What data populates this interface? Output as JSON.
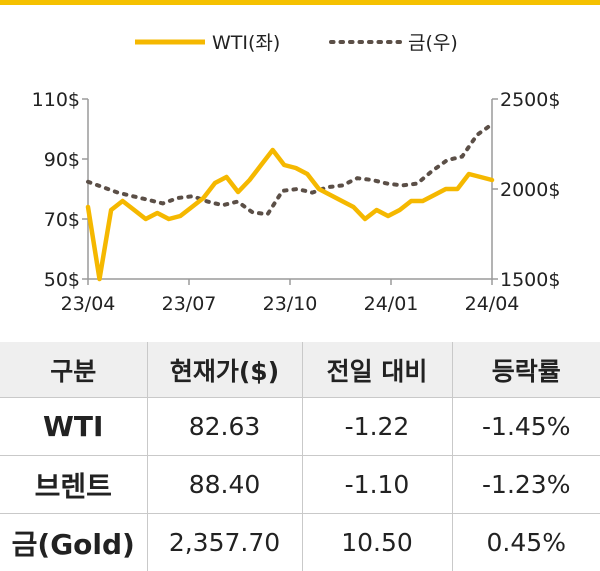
{
  "legend": {
    "wti": "WTI(좌)",
    "gold": "금(우)"
  },
  "colors": {
    "wti": "#f5b800",
    "gold": "#5b4f47",
    "axis": "#9a9a9a",
    "header_bg": "#efefef"
  },
  "chart_data": {
    "type": "line",
    "x_tick_labels": [
      "23/04",
      "23/07",
      "23/10",
      "24/01",
      "24/04"
    ],
    "y_left": {
      "ticks": [
        "110$",
        "90$",
        "70$",
        "50$"
      ],
      "range": [
        50,
        110
      ]
    },
    "y_right": {
      "ticks": [
        "2500$",
        "2000$",
        "1500$"
      ],
      "range": [
        1500,
        2500
      ]
    },
    "series": [
      {
        "name": "WTI(좌)",
        "axis": "left",
        "x": [
          "23/04",
          "23/04",
          "23/04",
          "23/04",
          "23/05",
          "23/05",
          "23/05",
          "23/06",
          "23/06",
          "23/07",
          "23/07",
          "23/07",
          "23/08",
          "23/08",
          "23/08",
          "23/09",
          "23/09",
          "23/09",
          "23/10",
          "23/10",
          "23/10",
          "23/11",
          "23/11",
          "23/11",
          "23/12",
          "23/12",
          "24/01",
          "24/01",
          "24/01",
          "24/02",
          "24/02",
          "24/03",
          "24/03",
          "24/03",
          "24/04",
          "24/04"
        ],
        "values": [
          74,
          50,
          73,
          76,
          73,
          70,
          72,
          70,
          71,
          74,
          77,
          82,
          84,
          79,
          83,
          88,
          93,
          88,
          87,
          85,
          80,
          78,
          76,
          74,
          70,
          73,
          71,
          73,
          76,
          76,
          78,
          80,
          80,
          85,
          84,
          83
        ]
      },
      {
        "name": "금(우)",
        "axis": "right",
        "x": [
          "23/04",
          "23/04",
          "23/05",
          "23/05",
          "23/06",
          "23/06",
          "23/07",
          "23/07",
          "23/08",
          "23/08",
          "23/09",
          "23/09",
          "23/10",
          "23/10",
          "23/10",
          "23/11",
          "23/11",
          "23/12",
          "23/12",
          "24/01",
          "24/01",
          "24/02",
          "24/02",
          "24/03",
          "24/03",
          "24/03",
          "24/04",
          "24/04"
        ],
        "values": [
          2040,
          2010,
          1980,
          1960,
          1940,
          1920,
          1950,
          1960,
          1930,
          1910,
          1930,
          1870,
          1860,
          1990,
          2000,
          1980,
          2010,
          2020,
          2060,
          2050,
          2030,
          2020,
          2030,
          2100,
          2160,
          2180,
          2300,
          2360
        ]
      }
    ]
  },
  "table": {
    "headers": [
      "구분",
      "현재가($)",
      "전일 대비",
      "등락률"
    ],
    "rows": [
      {
        "name": "WTI",
        "price": "82.63",
        "change": "-1.22",
        "pct": "-1.45%"
      },
      {
        "name": "브렌트",
        "price": "88.40",
        "change": "-1.10",
        "pct": "-1.23%"
      },
      {
        "name": "금(Gold)",
        "price": "2,357.70",
        "change": "10.50",
        "pct": "0.45%"
      }
    ]
  }
}
